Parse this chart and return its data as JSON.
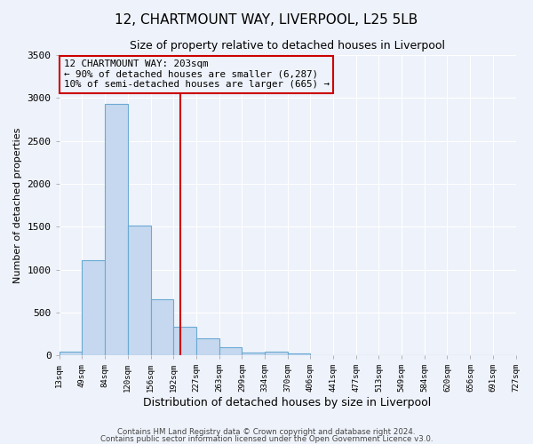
{
  "title": "12, CHARTMOUNT WAY, LIVERPOOL, L25 5LB",
  "subtitle": "Size of property relative to detached houses in Liverpool",
  "xlabel": "Distribution of detached houses by size in Liverpool",
  "ylabel": "Number of detached properties",
  "bar_color": "#c5d8ef",
  "bar_edge_color": "#6aaad4",
  "vline_x": 203,
  "vline_color": "#cc0000",
  "annotation_title": "12 CHARTMOUNT WAY: 203sqm",
  "annotation_line1": "← 90% of detached houses are smaller (6,287)",
  "annotation_line2": "10% of semi-detached houses are larger (665) →",
  "annotation_box_edge_color": "#cc0000",
  "bin_edges": [
    13,
    49,
    84,
    120,
    156,
    192,
    227,
    263,
    299,
    334,
    370,
    406,
    441,
    477,
    513,
    549,
    584,
    620,
    656,
    691,
    727
  ],
  "bin_heights": [
    45,
    1110,
    2930,
    1510,
    650,
    330,
    195,
    100,
    35,
    40,
    20,
    5,
    0,
    0,
    0,
    0,
    0,
    0,
    0,
    0
  ],
  "ylim": [
    0,
    3500
  ],
  "yticks": [
    0,
    500,
    1000,
    1500,
    2000,
    2500,
    3000,
    3500
  ],
  "footer1": "Contains HM Land Registry data © Crown copyright and database right 2024.",
  "footer2": "Contains public sector information licensed under the Open Government Licence v3.0.",
  "background_color": "#eef2fa",
  "grid_color": "#ffffff"
}
